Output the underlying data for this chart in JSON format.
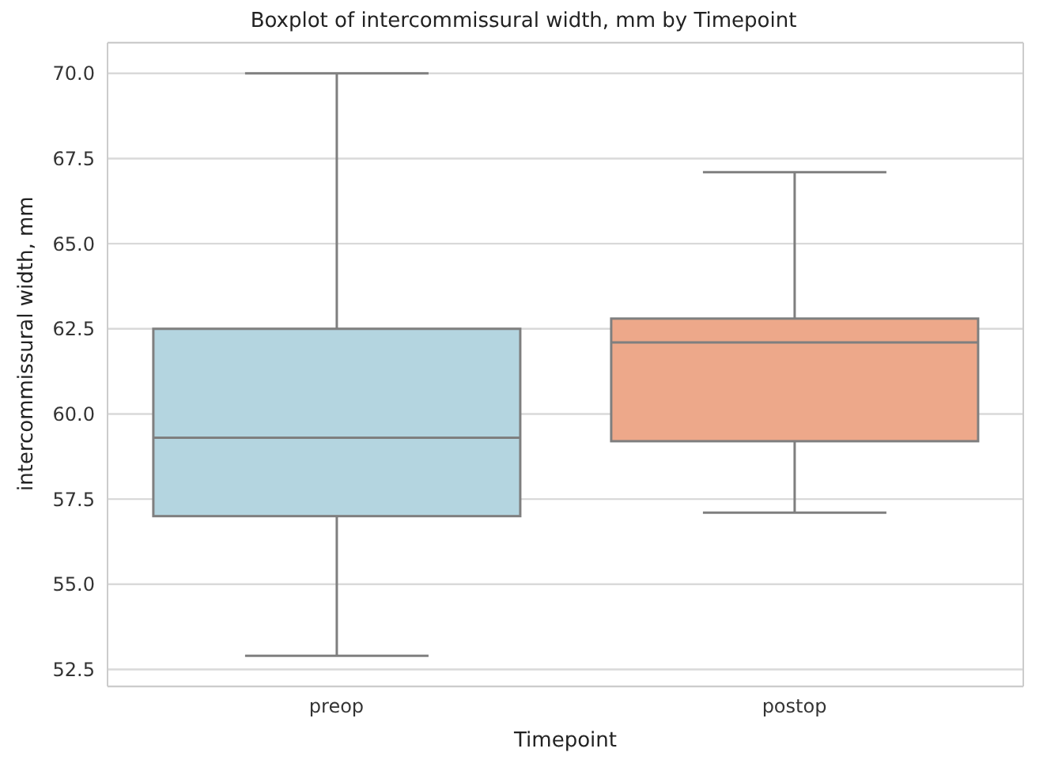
{
  "chart_data": {
    "type": "box",
    "title": "Boxplot of intercommissural width, mm by Timepoint",
    "xlabel": "Timepoint",
    "ylabel": "intercommissural width, mm",
    "categories": [
      "preop",
      "postop"
    ],
    "colors": [
      "#b4d5e0",
      "#eda88a"
    ],
    "boxes": [
      {
        "low": 52.9,
        "q1": 57.0,
        "median": 59.3,
        "q3": 62.5,
        "high": 70.0
      },
      {
        "low": 57.1,
        "q1": 59.2,
        "median": 62.1,
        "q3": 62.8,
        "high": 67.1
      }
    ],
    "ylim": [
      52.0,
      70.9
    ],
    "yticks": [
      52.5,
      {
        "value": 55,
        "label": "55.0"
      },
      57.5,
      {
        "value": 60,
        "label": "60.0"
      },
      62.5,
      {
        "value": 65,
        "label": "65.0"
      },
      67.5,
      {
        "value": 70,
        "label": "70.0"
      }
    ],
    "grid": "y"
  }
}
